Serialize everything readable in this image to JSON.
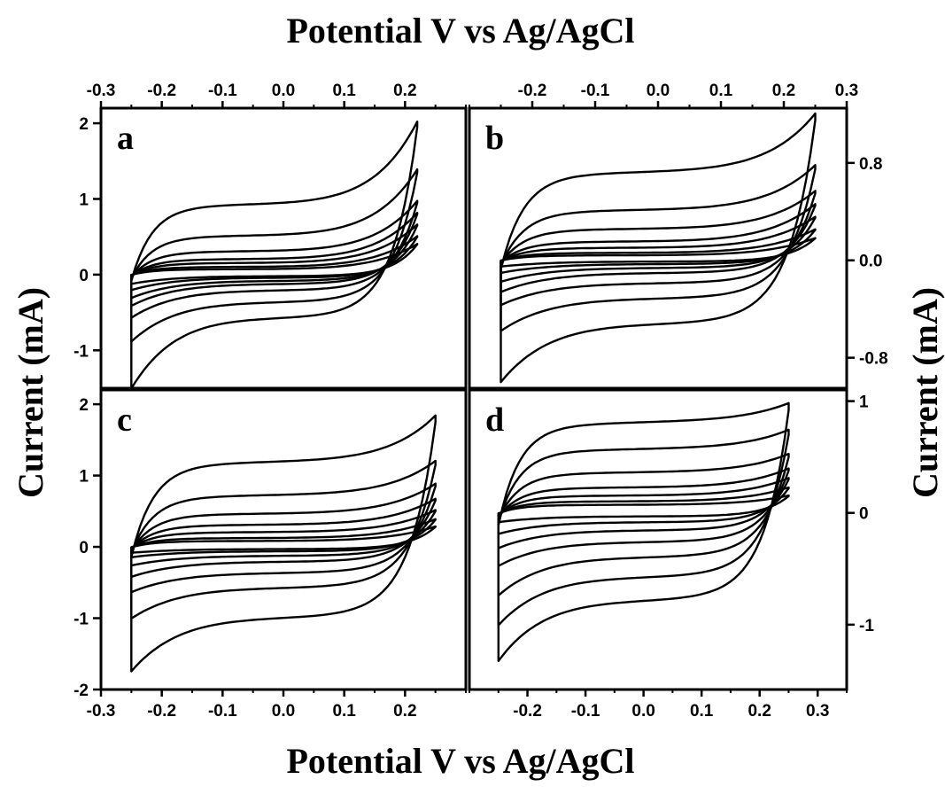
{
  "figure": {
    "top_xlabel": "Potential V vs Ag/AgCl",
    "bottom_xlabel": "Potential V vs Ag/AgCl",
    "left_ylabel": "Current (mA)",
    "right_ylabel": "Current (mA)"
  },
  "chart_data": [
    {
      "panel": "a",
      "type": "line",
      "subtype": "cyclic-voltammogram",
      "x_axis": "top",
      "y_axis": "left",
      "xlim": [
        -0.3,
        0.3
      ],
      "ylim": [
        -1.5,
        2.2
      ],
      "xticks": [
        "-0.3",
        "-0.2",
        "-0.1",
        "0.0",
        "0.1",
        "0.2"
      ],
      "yticks": [
        "-1",
        "0",
        "1",
        "2"
      ],
      "potential_window": [
        -0.25,
        0.22
      ],
      "series": [
        {
          "upper_plateau": 0.9,
          "upper_end": 1.95,
          "lower_plateau": -0.55,
          "lower_start": -1.45
        },
        {
          "upper_plateau": 0.5,
          "upper_end": 1.35,
          "lower_plateau": -0.35,
          "lower_start": -0.85
        },
        {
          "upper_plateau": 0.3,
          "upper_end": 0.95,
          "lower_plateau": -0.2,
          "lower_start": -0.55
        },
        {
          "upper_plateau": 0.2,
          "upper_end": 0.8,
          "lower_plateau": -0.12,
          "lower_start": -0.4
        },
        {
          "upper_plateau": 0.15,
          "upper_end": 0.65,
          "lower_plateau": -0.08,
          "lower_start": -0.3
        },
        {
          "upper_plateau": 0.1,
          "upper_end": 0.5,
          "lower_plateau": -0.04,
          "lower_start": -0.2
        },
        {
          "upper_plateau": 0.07,
          "upper_end": 0.4,
          "lower_plateau": -0.02,
          "lower_start": -0.12
        }
      ]
    },
    {
      "panel": "b",
      "type": "line",
      "subtype": "cyclic-voltammogram",
      "x_axis": "top",
      "y_axis": "right",
      "xlim": [
        -0.3,
        0.3
      ],
      "ylim": [
        -1.05,
        1.25
      ],
      "xticks": [
        "-0.2",
        "-0.1",
        "0.0",
        "0.1",
        "0.2",
        "0.3"
      ],
      "yticks": [
        "-0.8",
        "0.0",
        "0.8"
      ],
      "potential_window": [
        -0.25,
        0.25
      ],
      "series": [
        {
          "upper_plateau": 0.7,
          "upper_end": 1.15,
          "lower_plateau": -0.5,
          "lower_start": -0.95
        },
        {
          "upper_plateau": 0.4,
          "upper_end": 0.75,
          "lower_plateau": -0.3,
          "lower_start": -0.55
        },
        {
          "upper_plateau": 0.25,
          "upper_end": 0.55,
          "lower_plateau": -0.18,
          "lower_start": -0.35
        },
        {
          "upper_plateau": 0.15,
          "upper_end": 0.45,
          "lower_plateau": -0.1,
          "lower_start": -0.25
        },
        {
          "upper_plateau": 0.1,
          "upper_end": 0.35,
          "lower_plateau": -0.06,
          "lower_start": -0.17
        },
        {
          "upper_plateau": 0.06,
          "upper_end": 0.25,
          "lower_plateau": -0.03,
          "lower_start": -0.1
        },
        {
          "upper_plateau": 0.04,
          "upper_end": 0.18,
          "lower_plateau": -0.01,
          "lower_start": -0.05
        }
      ]
    },
    {
      "panel": "c",
      "type": "line",
      "subtype": "cyclic-voltammogram",
      "x_axis": "bottom",
      "y_axis": "left",
      "xlim": [
        -0.3,
        0.3
      ],
      "ylim": [
        -2.0,
        2.2
      ],
      "xticks": [
        "-0.3",
        "-0.2",
        "-0.1",
        "0.0",
        "0.1",
        "0.2"
      ],
      "yticks": [
        "-2",
        "-1",
        "0",
        "1",
        "2"
      ],
      "potential_window": [
        -0.25,
        0.25
      ],
      "series": [
        {
          "upper_plateau": 1.15,
          "upper_end": 1.75,
          "lower_plateau": -0.95,
          "lower_start": -1.65
        },
        {
          "upper_plateau": 0.7,
          "upper_end": 1.15,
          "lower_plateau": -0.55,
          "lower_start": -0.95
        },
        {
          "upper_plateau": 0.45,
          "upper_end": 0.85,
          "lower_plateau": -0.35,
          "lower_start": -0.6
        },
        {
          "upper_plateau": 0.3,
          "upper_end": 0.65,
          "lower_plateau": -0.2,
          "lower_start": -0.4
        },
        {
          "upper_plateau": 0.2,
          "upper_end": 0.5,
          "lower_plateau": -0.12,
          "lower_start": -0.25
        },
        {
          "upper_plateau": 0.12,
          "upper_end": 0.38,
          "lower_plateau": -0.06,
          "lower_start": -0.14
        },
        {
          "upper_plateau": 0.08,
          "upper_end": 0.28,
          "lower_plateau": -0.03,
          "lower_start": -0.08
        }
      ]
    },
    {
      "panel": "d",
      "type": "line",
      "subtype": "cyclic-voltammogram",
      "x_axis": "bottom",
      "y_axis": "right",
      "xlim": [
        -0.3,
        0.35
      ],
      "ylim": [
        -1.58,
        1.1
      ],
      "xticks": [
        "-0.2",
        "-0.1",
        "0.0",
        "0.1",
        "0.2",
        "0.3"
      ],
      "yticks": [
        "-1",
        "0",
        "1"
      ],
      "potential_window": [
        -0.25,
        0.25
      ],
      "series": [
        {
          "upper_plateau": 0.78,
          "upper_end": 0.92,
          "lower_plateau": -0.75,
          "lower_start": -1.25
        },
        {
          "upper_plateau": 0.55,
          "upper_end": 0.7,
          "lower_plateau": -0.55,
          "lower_start": -0.95
        },
        {
          "upper_plateau": 0.35,
          "upper_end": 0.5,
          "lower_plateau": -0.38,
          "lower_start": -0.7
        },
        {
          "upper_plateau": 0.22,
          "upper_end": 0.38,
          "lower_plateau": -0.25,
          "lower_start": -0.45
        },
        {
          "upper_plateau": 0.15,
          "upper_end": 0.3,
          "lower_plateau": -0.15,
          "lower_start": -0.3
        },
        {
          "upper_plateau": 0.1,
          "upper_end": 0.22,
          "lower_plateau": -0.08,
          "lower_start": -0.18
        },
        {
          "upper_plateau": 0.07,
          "upper_end": 0.15,
          "lower_plateau": -0.03,
          "lower_start": -0.08
        }
      ]
    }
  ]
}
